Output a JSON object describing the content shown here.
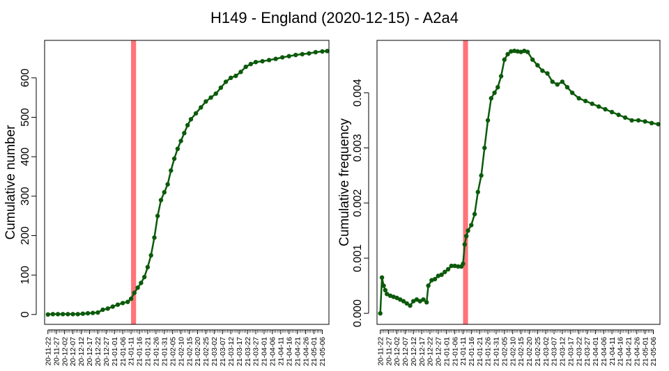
{
  "title": "H149 - England (2020-12-15) - A2a4",
  "colors": {
    "line": "#0b5a0b",
    "highlight": "#ff7379",
    "axis": "#000000"
  },
  "x_tick_labels": [
    "20-11-22",
    "20-11-27",
    "20-12-02",
    "20-12-07",
    "20-12-12",
    "20-12-17",
    "20-12-22",
    "20-12-27",
    "21-01-01",
    "21-01-06",
    "21-01-11",
    "21-01-16",
    "21-01-21",
    "21-01-26",
    "21-01-31",
    "21-02-05",
    "21-02-10",
    "21-02-15",
    "21-02-20",
    "21-02-25",
    "21-03-02",
    "21-03-07",
    "21-03-12",
    "21-03-17",
    "21-03-22",
    "21-03-27",
    "21-04-01",
    "21-04-06",
    "21-04-11",
    "21-04-16",
    "21-04-21",
    "21-04-26",
    "21-05-01",
    "21-05-06"
  ],
  "chart_data": [
    {
      "type": "line",
      "ylabel": "Cumulative number",
      "xlabel": "",
      "ylim": [
        -25,
        695
      ],
      "yticks": [
        0,
        100,
        200,
        300,
        400,
        500,
        600
      ],
      "ytick_labels": [
        "0",
        "100",
        "200",
        "300",
        "400",
        "500",
        "600"
      ],
      "highlight_band": [
        "21-01-11",
        "21-01-14"
      ],
      "points": [
        [
          "20-11-22",
          0
        ],
        [
          "20-11-25",
          1
        ],
        [
          "20-11-28",
          1
        ],
        [
          "20-12-01",
          1
        ],
        [
          "20-12-04",
          1
        ],
        [
          "20-12-07",
          1
        ],
        [
          "20-12-10",
          1
        ],
        [
          "20-12-13",
          2
        ],
        [
          "20-12-16",
          3
        ],
        [
          "20-12-19",
          4
        ],
        [
          "20-12-22",
          5
        ],
        [
          "20-12-25",
          12
        ],
        [
          "20-12-28",
          15
        ],
        [
          "20-12-31",
          20
        ],
        [
          "21-01-03",
          25
        ],
        [
          "21-01-06",
          29
        ],
        [
          "21-01-09",
          32
        ],
        [
          "21-01-11",
          40
        ],
        [
          "21-01-13",
          55
        ],
        [
          "21-01-15",
          68
        ],
        [
          "21-01-17",
          80
        ],
        [
          "21-01-19",
          95
        ],
        [
          "21-01-21",
          120
        ],
        [
          "21-01-23",
          150
        ],
        [
          "21-01-25",
          195
        ],
        [
          "21-01-27",
          250
        ],
        [
          "21-01-29",
          290
        ],
        [
          "21-01-31",
          310
        ],
        [
          "21-02-02",
          330
        ],
        [
          "21-02-04",
          365
        ],
        [
          "21-02-06",
          395
        ],
        [
          "21-02-08",
          420
        ],
        [
          "21-02-10",
          440
        ],
        [
          "21-02-12",
          460
        ],
        [
          "21-02-14",
          480
        ],
        [
          "21-02-16",
          495
        ],
        [
          "21-02-19",
          510
        ],
        [
          "21-02-22",
          525
        ],
        [
          "21-02-25",
          540
        ],
        [
          "21-02-28",
          550
        ],
        [
          "21-03-03",
          560
        ],
        [
          "21-03-06",
          575
        ],
        [
          "21-03-09",
          590
        ],
        [
          "21-03-12",
          600
        ],
        [
          "21-03-15",
          605
        ],
        [
          "21-03-18",
          615
        ],
        [
          "21-03-21",
          628
        ],
        [
          "21-03-24",
          635
        ],
        [
          "21-03-27",
          640
        ],
        [
          "21-03-31",
          642
        ],
        [
          "21-04-04",
          645
        ],
        [
          "21-04-08",
          648
        ],
        [
          "21-04-12",
          652
        ],
        [
          "21-04-16",
          655
        ],
        [
          "21-04-20",
          658
        ],
        [
          "21-04-24",
          660
        ],
        [
          "21-04-28",
          662
        ],
        [
          "21-05-02",
          665
        ],
        [
          "21-05-06",
          667
        ],
        [
          "21-05-09",
          668
        ]
      ]
    },
    {
      "type": "line",
      "ylabel": "Cumulative frequency",
      "xlabel": "",
      "ylim": [
        -0.0002,
        0.00495
      ],
      "yticks": [
        0,
        0.001,
        0.002,
        0.003,
        0.004
      ],
      "ytick_labels": [
        "0.000",
        "0.001",
        "0.002",
        "0.003",
        "0.004"
      ],
      "highlight_band": [
        "21-01-11",
        "21-01-14"
      ],
      "points": [
        [
          "20-11-22",
          0
        ],
        [
          "20-11-23",
          0.00065
        ],
        [
          "20-11-24",
          0.0005
        ],
        [
          "20-11-25",
          0.00042
        ],
        [
          "20-11-26",
          0.00035
        ],
        [
          "20-11-28",
          0.00032
        ],
        [
          "20-11-30",
          0.0003
        ],
        [
          "20-12-02",
          0.00028
        ],
        [
          "20-12-04",
          0.00025
        ],
        [
          "20-12-06",
          0.00022
        ],
        [
          "20-12-08",
          0.00018
        ],
        [
          "20-12-10",
          0.00014
        ],
        [
          "20-12-12",
          0.00022
        ],
        [
          "20-12-14",
          0.00025
        ],
        [
          "20-12-16",
          0.00022
        ],
        [
          "20-12-18",
          0.00025
        ],
        [
          "20-12-20",
          0.0002
        ],
        [
          "20-12-21",
          0.0005
        ],
        [
          "20-12-23",
          0.0006
        ],
        [
          "20-12-25",
          0.00062
        ],
        [
          "20-12-27",
          0.00068
        ],
        [
          "20-12-29",
          0.0007
        ],
        [
          "20-12-31",
          0.00075
        ],
        [
          "21-01-02",
          0.0008
        ],
        [
          "21-01-04",
          0.00086
        ],
        [
          "21-01-06",
          0.00086
        ],
        [
          "21-01-08",
          0.00085
        ],
        [
          "21-01-10",
          0.00085
        ],
        [
          "21-01-11",
          0.0009
        ],
        [
          "21-01-12",
          0.00125
        ],
        [
          "21-01-13",
          0.0014
        ],
        [
          "21-01-14",
          0.0015
        ],
        [
          "21-01-16",
          0.0016
        ],
        [
          "21-01-18",
          0.0018
        ],
        [
          "21-01-20",
          0.0022
        ],
        [
          "21-01-22",
          0.0025
        ],
        [
          "21-01-24",
          0.003
        ],
        [
          "21-01-26",
          0.0035
        ],
        [
          "21-01-28",
          0.0039
        ],
        [
          "21-01-30",
          0.004
        ],
        [
          "21-02-01",
          0.0041
        ],
        [
          "21-02-03",
          0.0043
        ],
        [
          "21-02-05",
          0.0046
        ],
        [
          "21-02-07",
          0.0047
        ],
        [
          "21-02-09",
          0.00475
        ],
        [
          "21-02-11",
          0.00476
        ],
        [
          "21-02-13",
          0.00475
        ],
        [
          "21-02-15",
          0.00474
        ],
        [
          "21-02-17",
          0.00476
        ],
        [
          "21-02-19",
          0.00474
        ],
        [
          "21-02-22",
          0.0046
        ],
        [
          "21-02-25",
          0.0045
        ],
        [
          "21-02-28",
          0.0044
        ],
        [
          "21-03-03",
          0.00435
        ],
        [
          "21-03-06",
          0.0042
        ],
        [
          "21-03-09",
          0.00415
        ],
        [
          "21-03-12",
          0.0042
        ],
        [
          "21-03-15",
          0.0041
        ],
        [
          "21-03-18",
          0.004
        ],
        [
          "21-03-22",
          0.0039
        ],
        [
          "21-03-26",
          0.00385
        ],
        [
          "21-03-30",
          0.0038
        ],
        [
          "21-04-03",
          0.00375
        ],
        [
          "21-04-07",
          0.0037
        ],
        [
          "21-04-11",
          0.00365
        ],
        [
          "21-04-15",
          0.0036
        ],
        [
          "21-04-19",
          0.00355
        ],
        [
          "21-04-23",
          0.0035
        ],
        [
          "21-04-27",
          0.0035
        ],
        [
          "21-05-01",
          0.00348
        ],
        [
          "21-05-05",
          0.00345
        ],
        [
          "21-05-09",
          0.00343
        ]
      ]
    }
  ]
}
